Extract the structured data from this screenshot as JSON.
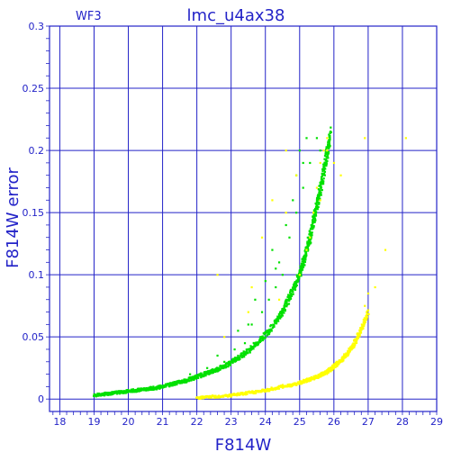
{
  "chart_data": {
    "type": "scatter",
    "title": "lmc_u4ax38",
    "corner_label": "WF3",
    "xlabel": "F814W",
    "ylabel": "F814W error",
    "xlim": [
      17.7,
      29
    ],
    "ylim": [
      -0.01,
      0.3
    ],
    "grid": true,
    "axis_color": "#2323c8",
    "x_ticks": [
      "18",
      "19",
      "20",
      "21",
      "22",
      "23",
      "24",
      "25",
      "26",
      "27",
      "28",
      "29"
    ],
    "x_tick_values": [
      18,
      19,
      20,
      21,
      22,
      23,
      24,
      25,
      26,
      27,
      28,
      29
    ],
    "y_ticks": [
      "0",
      "0.05",
      "0.1",
      "0.15",
      "0.2",
      "0.25",
      "0.3"
    ],
    "y_tick_values": [
      0,
      0.05,
      0.1,
      0.15,
      0.2,
      0.25,
      0.3
    ],
    "series": [
      {
        "color": "#00e000",
        "x": [
          19.0,
          19.3,
          19.6,
          19.9,
          20.2,
          20.5,
          20.8,
          21.1,
          21.4,
          21.7,
          22.0,
          22.3,
          22.6,
          22.9,
          23.2,
          23.5,
          23.8,
          24.1,
          24.4,
          24.6,
          24.8,
          25.0,
          25.1,
          25.2,
          25.3,
          25.4,
          25.5,
          25.6,
          25.7,
          25.8,
          25.9
        ],
        "y": [
          0.003,
          0.004,
          0.005,
          0.006,
          0.007,
          0.008,
          0.009,
          0.011,
          0.013,
          0.015,
          0.018,
          0.021,
          0.024,
          0.028,
          0.033,
          0.039,
          0.046,
          0.055,
          0.066,
          0.076,
          0.088,
          0.1,
          0.11,
          0.12,
          0.13,
          0.142,
          0.155,
          0.168,
          0.182,
          0.197,
          0.213
        ],
        "scatter_points": [
          [
            21.8,
            0.02
          ],
          [
            22.3,
            0.025
          ],
          [
            22.8,
            0.03
          ],
          [
            23.1,
            0.04
          ],
          [
            23.4,
            0.045
          ],
          [
            23.6,
            0.06
          ],
          [
            23.9,
            0.07
          ],
          [
            24.1,
            0.08
          ],
          [
            24.3,
            0.09
          ],
          [
            24.5,
            0.1
          ],
          [
            24.2,
            0.12
          ],
          [
            24.6,
            0.14
          ],
          [
            24.8,
            0.16
          ],
          [
            24.9,
            0.18
          ],
          [
            25.0,
            0.2
          ],
          [
            25.2,
            0.21
          ],
          [
            25.3,
            0.19
          ],
          [
            25.1,
            0.17
          ],
          [
            24.7,
            0.13
          ],
          [
            24.4,
            0.11
          ],
          [
            23.7,
            0.08
          ],
          [
            23.2,
            0.055
          ],
          [
            22.6,
            0.035
          ],
          [
            25.5,
            0.21
          ],
          [
            25.6,
            0.2
          ],
          [
            24.0,
            0.095
          ],
          [
            24.9,
            0.15
          ],
          [
            25.1,
            0.19
          ],
          [
            23.5,
            0.06
          ],
          [
            24.3,
            0.105
          ]
        ]
      },
      {
        "color": "#ffff00",
        "x": [
          22.0,
          22.5,
          23.0,
          23.5,
          24.0,
          24.5,
          25.0,
          25.3,
          25.6,
          25.8,
          26.0,
          26.2,
          26.4,
          26.6,
          26.8,
          27.0
        ],
        "y": [
          0.001,
          0.002,
          0.003,
          0.005,
          0.007,
          0.01,
          0.013,
          0.016,
          0.019,
          0.022,
          0.026,
          0.031,
          0.037,
          0.045,
          0.056,
          0.07
        ],
        "scatter_points": [
          [
            25.4,
            0.15
          ],
          [
            25.5,
            0.17
          ],
          [
            25.6,
            0.19
          ],
          [
            25.7,
            0.2
          ],
          [
            25.8,
            0.21
          ],
          [
            25.3,
            0.13
          ],
          [
            25.2,
            0.12
          ],
          [
            24.6,
            0.15
          ],
          [
            24.9,
            0.18
          ],
          [
            25.0,
            0.1
          ],
          [
            24.4,
            0.08
          ],
          [
            23.5,
            0.07
          ],
          [
            22.8,
            0.05
          ],
          [
            23.9,
            0.13
          ],
          [
            24.6,
            0.2
          ],
          [
            26.2,
            0.18
          ],
          [
            26.9,
            0.21
          ],
          [
            27.5,
            0.12
          ],
          [
            27.0,
            0.085
          ],
          [
            26.9,
            0.075
          ],
          [
            28.1,
            0.21
          ],
          [
            22.6,
            0.1
          ],
          [
            25.6,
            0.16
          ],
          [
            25.8,
            0.2
          ],
          [
            24.2,
            0.16
          ],
          [
            23.6,
            0.09
          ],
          [
            26.0,
            0.19
          ],
          [
            27.2,
            0.09
          ]
        ]
      }
    ]
  }
}
